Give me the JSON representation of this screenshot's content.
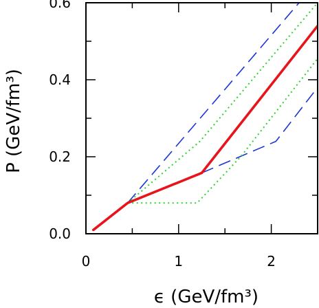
{
  "chart_data": {
    "type": "line",
    "xlabel": "ϵ  (GeV/fm³)",
    "ylabel": "P  (GeV/fm³)",
    "xlim": [
      0,
      2.5
    ],
    "ylim": [
      0,
      0.6
    ],
    "x_ticks": [
      0,
      1,
      2
    ],
    "x_tick_labels": [
      "0",
      "1",
      "2"
    ],
    "y_ticks": [
      0.0,
      0.2,
      0.4,
      0.6
    ],
    "y_tick_labels": [
      "0.0",
      "0.2",
      "0.4",
      "0.6"
    ],
    "x_minor_ticks": [
      0.5,
      1.5
    ],
    "y_minor_ticks": [
      0.1,
      0.3,
      0.5
    ],
    "grid": false,
    "legend": "none",
    "series": [
      {
        "style": "solid",
        "color": "#e8141c",
        "points": [
          [
            0.08,
            0.01
          ],
          [
            0.45,
            0.08
          ],
          [
            1.25,
            0.158
          ],
          [
            2.5,
            0.54
          ]
        ]
      },
      {
        "style": "dashed",
        "color": "#1a35d6",
        "points": [
          [
            0.45,
            0.08
          ],
          [
            2.3,
            0.6
          ]
        ]
      },
      {
        "style": "dashed",
        "color": "#1a35d6",
        "points": [
          [
            1.25,
            0.158
          ],
          [
            2.05,
            0.24
          ],
          [
            2.5,
            0.38
          ]
        ]
      },
      {
        "style": "dotted",
        "color": "#28d228",
        "points": [
          [
            0.45,
            0.08
          ],
          [
            1.23,
            0.24
          ],
          [
            2.5,
            0.6
          ]
        ]
      },
      {
        "style": "dotted",
        "color": "#28d228",
        "points": [
          [
            0.45,
            0.08
          ],
          [
            1.2,
            0.08
          ],
          [
            1.67,
            0.2
          ],
          [
            2.5,
            0.455
          ]
        ]
      }
    ]
  }
}
